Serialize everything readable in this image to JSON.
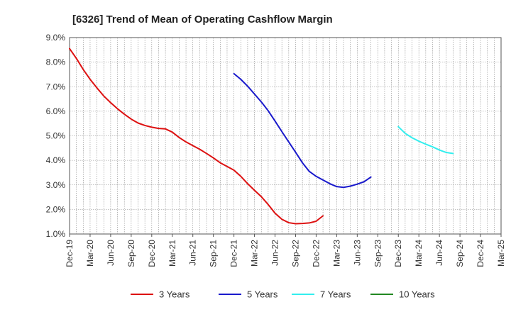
{
  "chart_data": {
    "type": "line",
    "title": "[6326]  Trend of Mean of Operating Cashflow Margin",
    "xlabel": "",
    "ylabel": "",
    "ylim": [
      1.0,
      9.0
    ],
    "y_ticks": [
      "1.0%",
      "2.0%",
      "3.0%",
      "4.0%",
      "5.0%",
      "6.0%",
      "7.0%",
      "8.0%",
      "9.0%"
    ],
    "x_tick_labels": [
      "Dec-19",
      "Mar-20",
      "Jun-20",
      "Sep-20",
      "Dec-20",
      "Mar-21",
      "Jun-21",
      "Sep-21",
      "Dec-21",
      "Mar-22",
      "Jun-22",
      "Sep-22",
      "Dec-22",
      "Mar-23",
      "Jun-23",
      "Sep-23",
      "Dec-23",
      "Mar-24",
      "Jun-24",
      "Sep-24",
      "Dec-24",
      "Mar-25"
    ],
    "grid": true,
    "series": [
      {
        "name": "3 Years",
        "color": "#dd1111",
        "start_index": 0,
        "values": [
          8.55,
          8.15,
          7.7,
          7.3,
          6.95,
          6.62,
          6.35,
          6.1,
          5.88,
          5.68,
          5.52,
          5.42,
          5.35,
          5.3,
          5.28,
          5.15,
          4.93,
          4.75,
          4.6,
          4.45,
          4.28,
          4.1,
          3.9,
          3.75,
          3.6,
          3.35,
          3.05,
          2.78,
          2.52,
          2.2,
          1.85,
          1.6,
          1.46,
          1.42,
          1.43,
          1.45,
          1.52,
          1.74
        ]
      },
      {
        "name": "5 Years",
        "color": "#1a1acc",
        "start_index": 24,
        "values": [
          7.53,
          7.3,
          7.02,
          6.7,
          6.38,
          6.02,
          5.6,
          5.17,
          4.75,
          4.33,
          3.9,
          3.55,
          3.35,
          3.2,
          3.05,
          2.93,
          2.9,
          2.95,
          3.03,
          3.13,
          3.32
        ]
      },
      {
        "name": "7 Years",
        "color": "#33eeee",
        "start_index": 48,
        "values": [
          5.37,
          5.1,
          4.92,
          4.78,
          4.66,
          4.55,
          4.42,
          4.32,
          4.28
        ]
      },
      {
        "name": "10 Years",
        "color": "#228822",
        "start_index": 0,
        "values": []
      }
    ],
    "legend_position": "bottom"
  }
}
